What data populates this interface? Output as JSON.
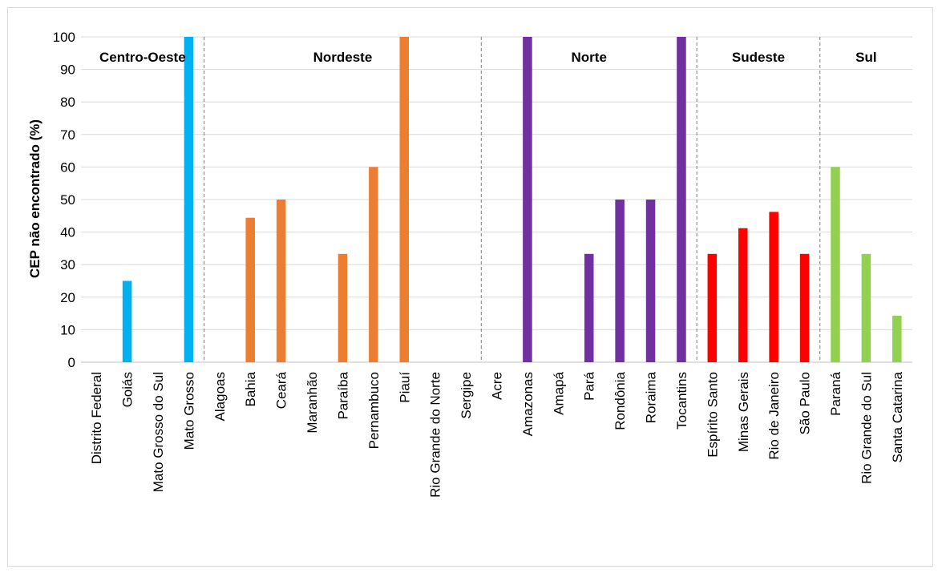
{
  "chart_data": {
    "type": "bar",
    "title": "",
    "xlabel": "",
    "ylabel": "CEP não encontrado (%)",
    "ylim": [
      0,
      100
    ],
    "yticks": [
      0,
      10,
      20,
      30,
      40,
      50,
      60,
      70,
      80,
      90,
      100
    ],
    "grid": true,
    "groups": [
      {
        "name": "Centro-Oeste",
        "color": "#00b0f0",
        "categories": [
          "Distrito Federal",
          "Goiás",
          "Mato Grosso do Sul",
          "Mato Grosso"
        ],
        "values": [
          0,
          25,
          0,
          100
        ]
      },
      {
        "name": "Nordeste",
        "color": "#ed7d31",
        "categories": [
          "Alagoas",
          "Bahia",
          "Ceará",
          "Maranhão",
          "Paraíba",
          "Pernambuco",
          "Piauí",
          "Rio Grande do Norte",
          "Sergipe"
        ],
        "values": [
          0,
          44.4,
          50,
          0,
          33.3,
          60,
          100,
          0,
          0
        ]
      },
      {
        "name": "Norte",
        "color": "#7030a0",
        "categories": [
          "Acre",
          "Amazonas",
          "Amapá",
          "Pará",
          "Rondônia",
          "Roraima",
          "Tocantins"
        ],
        "values": [
          0,
          100,
          0,
          33.3,
          50,
          50,
          100
        ]
      },
      {
        "name": "Sudeste",
        "color": "#ff0000",
        "categories": [
          "Espírito Santo",
          "Minas Gerais",
          "Rio de Janeiro",
          "São Paulo"
        ],
        "values": [
          33.3,
          41.2,
          46.2,
          33.3
        ]
      },
      {
        "name": "Sul",
        "color": "#92d050",
        "categories": [
          "Paraná",
          "Rio Grande do Sul",
          "Santa Catarina"
        ],
        "values": [
          60,
          33.3,
          14.3
        ]
      }
    ]
  }
}
